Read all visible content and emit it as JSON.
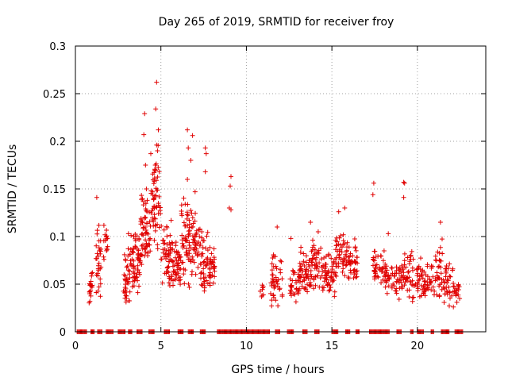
{
  "chart_data": {
    "type": "scatter",
    "title": "Day 265 of 2019, SRMTID for receiver froy",
    "xlabel": "GPS time / hours",
    "ylabel": "SRMTID / TECUs",
    "xlim": [
      0,
      24
    ],
    "ylim": [
      0,
      0.3
    ],
    "xticks": [
      0,
      5,
      10,
      15,
      20
    ],
    "xtick_labels": [
      "0",
      "5",
      "10",
      "15",
      "20"
    ],
    "yticks": [
      0,
      0.05,
      0.1,
      0.15,
      0.2,
      0.25,
      0.3
    ],
    "ytick_labels": [
      "0",
      "0.05",
      "0.1",
      "0.15",
      "0.2",
      "0.25",
      "0.3"
    ],
    "grid": true,
    "marker": "+",
    "color": "#e00000",
    "zero_clusters": [
      [
        0.1,
        0.7
      ],
      [
        0.9,
        1.1
      ],
      [
        1.3,
        1.6
      ],
      [
        1.8,
        2.2
      ],
      [
        2.5,
        2.9
      ],
      [
        3.1,
        3.3
      ],
      [
        3.6,
        3.9
      ],
      [
        4.3,
        4.6
      ],
      [
        5.2,
        5.5
      ],
      [
        6.0,
        6.3
      ],
      [
        6.6,
        6.9
      ],
      [
        7.3,
        7.6
      ],
      [
        8.3,
        11.4
      ],
      [
        11.7,
        12.0
      ],
      [
        12.4,
        12.8
      ],
      [
        13.3,
        13.6
      ],
      [
        14.0,
        14.3
      ],
      [
        15.0,
        15.4
      ],
      [
        15.8,
        16.1
      ],
      [
        16.4,
        16.6
      ],
      [
        17.2,
        18.4
      ],
      [
        18.8,
        19.1
      ],
      [
        19.6,
        19.8
      ],
      [
        20.0,
        20.4
      ],
      [
        20.8,
        21.0
      ],
      [
        21.4,
        21.9
      ],
      [
        22.2,
        22.7
      ]
    ],
    "clusters": [
      {
        "x": [
          0.8,
          1.0
        ],
        "ymin": 0.025,
        "ymax": 0.07,
        "n": 20
      },
      {
        "x": [
          1.2,
          1.5
        ],
        "ymin": 0.03,
        "ymax": 0.125,
        "n": 30
      },
      {
        "x": [
          1.6,
          1.9
        ],
        "ymin": 0.07,
        "ymax": 0.12,
        "n": 15
      },
      {
        "x": [
          2.8,
          3.2
        ],
        "ymin": 0.02,
        "ymax": 0.09,
        "n": 40
      },
      {
        "x": [
          3.2,
          3.8
        ],
        "ymin": 0.04,
        "ymax": 0.105,
        "n": 60
      },
      {
        "x": [
          3.8,
          4.4
        ],
        "ymin": 0.06,
        "ymax": 0.15,
        "n": 60
      },
      {
        "x": [
          4.4,
          5.0
        ],
        "ymin": 0.08,
        "ymax": 0.2,
        "n": 60
      },
      {
        "x": [
          5.0,
          5.6
        ],
        "ymin": 0.045,
        "ymax": 0.12,
        "n": 50
      },
      {
        "x": [
          5.6,
          6.2
        ],
        "ymin": 0.04,
        "ymax": 0.1,
        "n": 50
      },
      {
        "x": [
          6.2,
          6.8
        ],
        "ymin": 0.045,
        "ymax": 0.15,
        "n": 60
      },
      {
        "x": [
          6.8,
          7.3
        ],
        "ymin": 0.05,
        "ymax": 0.13,
        "n": 40
      },
      {
        "x": [
          7.3,
          7.9
        ],
        "ymin": 0.03,
        "ymax": 0.11,
        "n": 50
      },
      {
        "x": [
          7.9,
          8.2
        ],
        "ymin": 0.05,
        "ymax": 0.09,
        "n": 20
      },
      {
        "x": [
          10.8,
          11.0
        ],
        "ymin": 0.035,
        "ymax": 0.055,
        "n": 8
      },
      {
        "x": [
          11.4,
          12.1
        ],
        "ymin": 0.02,
        "ymax": 0.085,
        "n": 45
      },
      {
        "x": [
          12.5,
          13.1
        ],
        "ymin": 0.03,
        "ymax": 0.07,
        "n": 35
      },
      {
        "x": [
          13.1,
          13.8
        ],
        "ymin": 0.035,
        "ymax": 0.09,
        "n": 50
      },
      {
        "x": [
          13.8,
          14.5
        ],
        "ymin": 0.04,
        "ymax": 0.1,
        "n": 50
      },
      {
        "x": [
          14.5,
          15.2
        ],
        "ymin": 0.03,
        "ymax": 0.09,
        "n": 50
      },
      {
        "x": [
          15.2,
          15.9
        ],
        "ymin": 0.05,
        "ymax": 0.11,
        "n": 50
      },
      {
        "x": [
          15.9,
          16.5
        ],
        "ymin": 0.05,
        "ymax": 0.1,
        "n": 40
      },
      {
        "x": [
          17.4,
          18.1
        ],
        "ymin": 0.04,
        "ymax": 0.09,
        "n": 40
      },
      {
        "x": [
          18.1,
          18.8
        ],
        "ymin": 0.035,
        "ymax": 0.08,
        "n": 40
      },
      {
        "x": [
          18.8,
          19.5
        ],
        "ymin": 0.03,
        "ymax": 0.085,
        "n": 40
      },
      {
        "x": [
          19.5,
          20.2
        ],
        "ymin": 0.025,
        "ymax": 0.09,
        "n": 40
      },
      {
        "x": [
          20.2,
          20.8
        ],
        "ymin": 0.035,
        "ymax": 0.075,
        "n": 35
      },
      {
        "x": [
          20.8,
          21.5
        ],
        "ymin": 0.03,
        "ymax": 0.1,
        "n": 40
      },
      {
        "x": [
          21.5,
          22.2
        ],
        "ymin": 0.025,
        "ymax": 0.08,
        "n": 40
      },
      {
        "x": [
          22.2,
          22.5
        ],
        "ymin": 0.03,
        "ymax": 0.055,
        "n": 15
      }
    ],
    "points": [
      [
        4.75,
        0.262
      ],
      [
        4.7,
        0.234
      ],
      [
        4.05,
        0.229
      ],
      [
        4.0,
        0.207
      ],
      [
        4.85,
        0.212
      ],
      [
        4.75,
        0.196
      ],
      [
        4.8,
        0.19
      ],
      [
        4.1,
        0.175
      ],
      [
        6.55,
        0.212
      ],
      [
        6.85,
        0.206
      ],
      [
        6.75,
        0.18
      ],
      [
        6.6,
        0.193
      ],
      [
        7.6,
        0.193
      ],
      [
        7.65,
        0.187
      ],
      [
        7.6,
        0.168
      ],
      [
        9.1,
        0.163
      ],
      [
        9.05,
        0.153
      ],
      [
        9.0,
        0.13
      ],
      [
        9.1,
        0.128
      ],
      [
        17.45,
        0.156
      ],
      [
        17.4,
        0.144
      ],
      [
        19.2,
        0.157
      ],
      [
        19.25,
        0.156
      ],
      [
        19.2,
        0.141
      ],
      [
        1.25,
        0.141
      ],
      [
        15.75,
        0.13
      ],
      [
        15.4,
        0.126
      ],
      [
        21.35,
        0.115
      ],
      [
        11.8,
        0.11
      ],
      [
        12.6,
        0.098
      ],
      [
        4.2,
        0.138
      ],
      [
        4.15,
        0.15
      ],
      [
        4.9,
        0.168
      ],
      [
        6.55,
        0.16
      ],
      [
        7.0,
        0.147
      ],
      [
        3.1,
        0.103
      ],
      [
        5.6,
        0.117
      ],
      [
        13.75,
        0.115
      ],
      [
        14.2,
        0.105
      ],
      [
        18.3,
        0.103
      ]
    ]
  }
}
